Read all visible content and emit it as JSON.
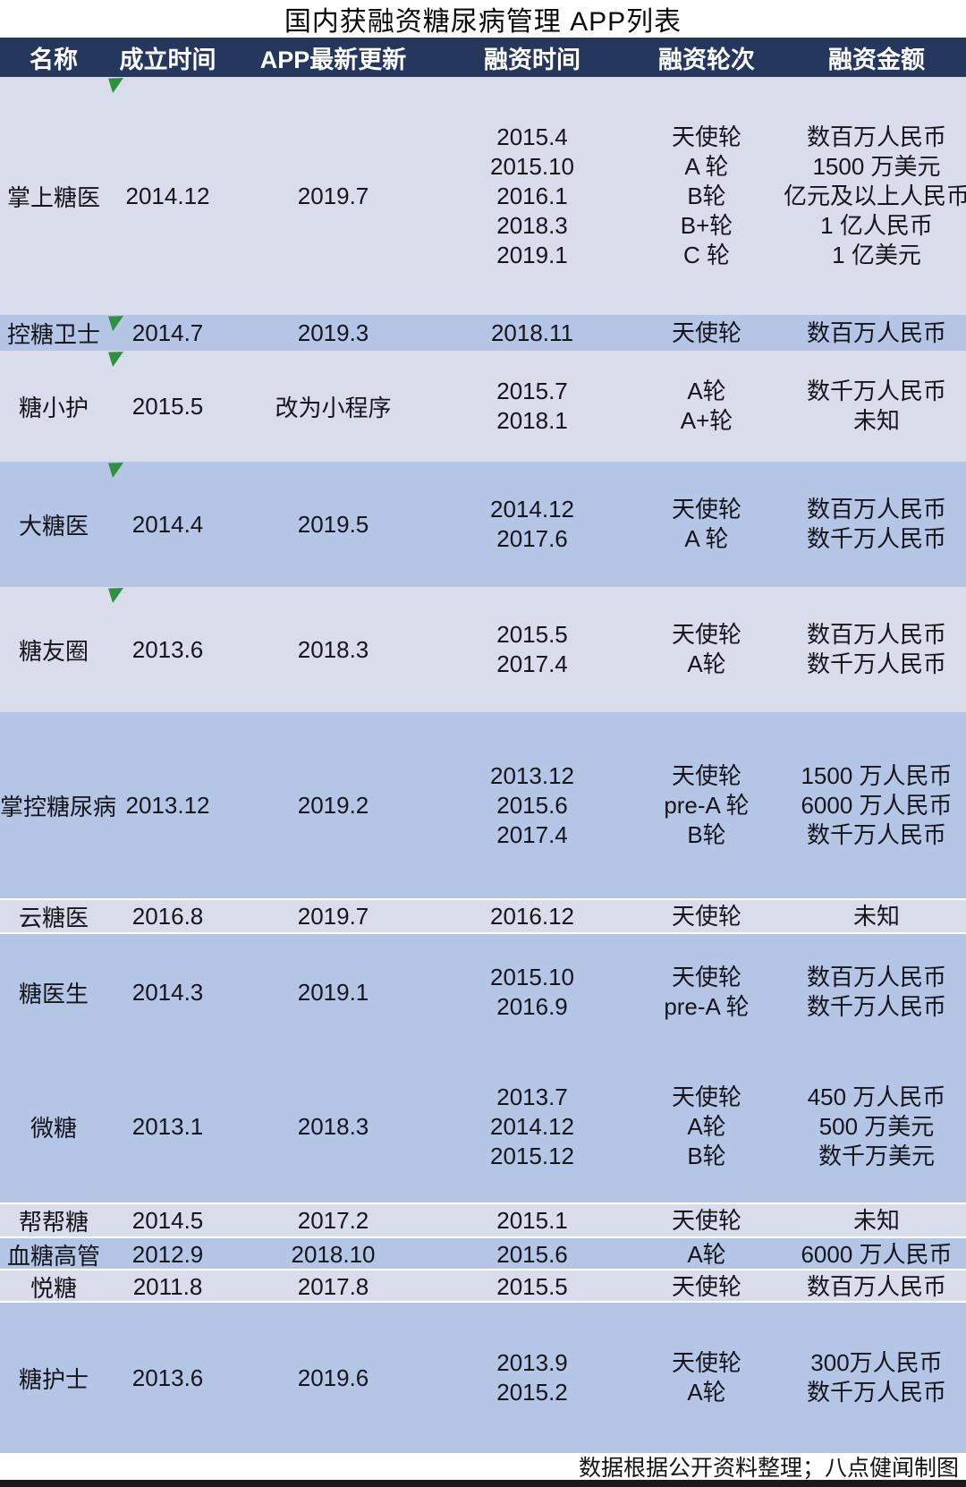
{
  "title": "国内获融资糖尿病管理 APP列表",
  "colors": {
    "header_bg": "#26375E",
    "row_light": "#D9DCEB",
    "row_blue": "#B5C5E5",
    "marker_green": "#2E9140",
    "footer_bar": "#1A1A1A"
  },
  "footer": {
    "credit": "数据根据公开资料整理；八点健闻制图"
  },
  "chart_data": {
    "type": "table",
    "title": "国内获融资糖尿病管理 APP列表",
    "columns": [
      "名称",
      "成立时间",
      "APP最新更新",
      "融资时间",
      "融资轮次",
      "融资金额"
    ],
    "rows": [
      {
        "name": "掌上糖医",
        "founded": "2014.12",
        "updated": "2019.7",
        "has_note_marker": true,
        "fundings": [
          {
            "time": "2015.4",
            "round": "天使轮",
            "amount": "数百万人民币"
          },
          {
            "time": "2015.10",
            "round": "A 轮",
            "amount": "1500 万美元"
          },
          {
            "time": "2016.1",
            "round": "B轮",
            "amount": "亿元及以上人民币"
          },
          {
            "time": "2018.3",
            "round": "B+轮",
            "amount": "1 亿人民币"
          },
          {
            "time": "2019.1",
            "round": "C 轮",
            "amount": "1 亿美元"
          }
        ]
      },
      {
        "name": "控糖卫士",
        "founded": "2014.7",
        "updated": "2019.3",
        "has_note_marker": true,
        "fundings": [
          {
            "time": "2018.11",
            "round": "天使轮",
            "amount": "数百万人民币"
          }
        ]
      },
      {
        "name": "糖小护",
        "founded": "2015.5",
        "updated": "改为小程序",
        "has_note_marker": true,
        "fundings": [
          {
            "time": "2015.7",
            "round": "A轮",
            "amount": "数千万人民币"
          },
          {
            "time": "2018.1",
            "round": "A+轮",
            "amount": "未知"
          }
        ]
      },
      {
        "name": "大糖医",
        "founded": "2014.4",
        "updated": "2019.5",
        "has_note_marker": true,
        "fundings": [
          {
            "time": "2014.12",
            "round": "天使轮",
            "amount": "数百万人民币"
          },
          {
            "time": "2017.6",
            "round": "A 轮",
            "amount": "数千万人民币"
          }
        ]
      },
      {
        "name": "糖友圈",
        "founded": "2013.6",
        "updated": "2018.3",
        "has_note_marker": true,
        "fundings": [
          {
            "time": "2015.5",
            "round": "天使轮",
            "amount": "数百万人民币"
          },
          {
            "time": "2017.4",
            "round": "A轮",
            "amount": "数千万人民币"
          }
        ]
      },
      {
        "name": "掌控糖尿病",
        "founded": "2013.12",
        "updated": "2019.2",
        "has_note_marker": false,
        "fundings": [
          {
            "time": "2013.12",
            "round": "天使轮",
            "amount": "1500 万人民币"
          },
          {
            "time": "2015.6",
            "round": "pre-A 轮",
            "amount": "6000 万人民币"
          },
          {
            "time": "2017.4",
            "round": "B轮",
            "amount": "数千万人民币"
          }
        ]
      },
      {
        "name": "云糖医",
        "founded": "2016.8",
        "updated": "2019.7",
        "has_note_marker": false,
        "fundings": [
          {
            "time": "2016.12",
            "round": "天使轮",
            "amount": "未知"
          }
        ]
      },
      {
        "name": "糖医生",
        "founded": "2014.3",
        "updated": "2019.1",
        "has_note_marker": false,
        "fundings": [
          {
            "time": "2015.10",
            "round": "天使轮",
            "amount": "数百万人民币"
          },
          {
            "time": "2016.9",
            "round": "pre-A 轮",
            "amount": "数千万人民币"
          }
        ]
      },
      {
        "name": "微糖",
        "founded": "2013.1",
        "updated": "2018.3",
        "has_note_marker": false,
        "fundings": [
          {
            "time": "2013.7",
            "round": "天使轮",
            "amount": "450 万人民币"
          },
          {
            "time": "2014.12",
            "round": "A轮",
            "amount": "500 万美元"
          },
          {
            "time": "2015.12",
            "round": "B轮",
            "amount": "数千万美元"
          }
        ]
      },
      {
        "name": "帮帮糖",
        "founded": "2014.5",
        "updated": "2017.2",
        "has_note_marker": false,
        "fundings": [
          {
            "time": "2015.1",
            "round": "天使轮",
            "amount": "未知"
          }
        ]
      },
      {
        "name": "血糖高管",
        "founded": "2012.9",
        "updated": "2018.10",
        "has_note_marker": false,
        "fundings": [
          {
            "time": "2015.6",
            "round": "A轮",
            "amount": "6000 万人民币"
          }
        ]
      },
      {
        "name": "悦糖",
        "founded": "2011.8",
        "updated": "2017.8",
        "has_note_marker": false,
        "fundings": [
          {
            "time": "2015.5",
            "round": "天使轮",
            "amount": "数百万人民币"
          }
        ]
      },
      {
        "name": "糖护士",
        "founded": "2013.6",
        "updated": "2019.6",
        "has_note_marker": false,
        "fundings": [
          {
            "time": "2013.9",
            "round": "天使轮",
            "amount": "300万人民币"
          },
          {
            "time": "2015.2",
            "round": "A轮",
            "amount": "数千万人民币"
          }
        ]
      }
    ]
  }
}
